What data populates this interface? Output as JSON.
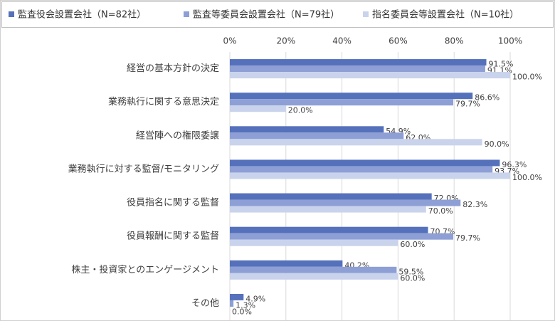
{
  "chart_data": {
    "type": "hbar",
    "categories": [
      "経営の基本方針の決定",
      "業務執行に関する意思決定",
      "経営陣への権限委譲",
      "業務執行に対する監督/モニタリング",
      "役員指名に関する監督",
      "役員報酬に関する監督",
      "株主・投資家とのエンゲージメント",
      "その他"
    ],
    "series": [
      {
        "name": "監査役会設置会社（N=82社）",
        "color": "#5571bb",
        "values": [
          91.5,
          86.6,
          54.9,
          96.3,
          72.0,
          70.7,
          40.2,
          4.9
        ],
        "value_labels": [
          "91.5%",
          "86.6%",
          "54.9%",
          "96.3%",
          "72.0%",
          "70.7%",
          "40.2%",
          "4.9%"
        ]
      },
      {
        "name": "監査等委員会設置会社（N=79社）",
        "color": "#8d9fd5",
        "values": [
          91.1,
          79.7,
          62.0,
          93.7,
          82.3,
          79.7,
          59.5,
          1.3
        ],
        "value_labels": [
          "91.1%",
          "79.7%",
          "62.0%",
          "93.7%",
          "82.3%",
          "79.7%",
          "59.5%",
          "1.3%"
        ]
      },
      {
        "name": "指名委員会等設置会社（N=10社）",
        "color": "#c9d3ec",
        "values": [
          100.0,
          20.0,
          90.0,
          100.0,
          70.0,
          60.0,
          60.0,
          0.0
        ],
        "value_labels": [
          "100.0%",
          "20.0%",
          "90.0%",
          "100.0%",
          "70.0%",
          "60.0%",
          "60.0%",
          "0.0%"
        ]
      }
    ],
    "xlim": [
      0,
      100
    ],
    "xticks": [
      {
        "value": 0,
        "label": "0%"
      },
      {
        "value": 20,
        "label": "20%"
      },
      {
        "value": 40,
        "label": "40%"
      },
      {
        "value": 60,
        "label": "60%"
      },
      {
        "value": 80,
        "label": "80%"
      },
      {
        "value": 100,
        "label": "100%"
      }
    ],
    "grid": true,
    "legend": "top"
  }
}
